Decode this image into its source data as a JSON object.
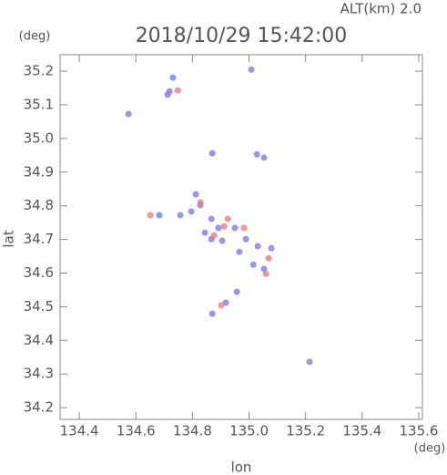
{
  "chart_data": {
    "type": "scatter",
    "annotation": "ALT(km) 2.0",
    "title": "2018/10/29 15:42:00",
    "y_unit": "(deg)",
    "x_unit": "(deg)",
    "ylabel": "lat",
    "xlabel": "lon",
    "xlim": [
      134.332,
      135.613
    ],
    "ylim": [
      34.165,
      35.249
    ],
    "xticks": [
      134.4,
      134.6,
      134.8,
      {
        "value": 135,
        "label": "135.0"
      },
      135.2,
      135.4,
      135.6
    ],
    "yticks": [
      34.2,
      34.3,
      34.4,
      34.5,
      34.6,
      34.7,
      34.8,
      34.9,
      {
        "value": 35,
        "label": "35.0"
      },
      35.1,
      35.2
    ],
    "series": [
      {
        "color": "#7b7bf0",
        "x": [
          134.574,
          134.719,
          134.731,
          134.712,
          135.008,
          134.87,
          135.028,
          135.053,
          134.812,
          134.828,
          134.683,
          134.757,
          134.867,
          134.892,
          134.867,
          134.95,
          134.989,
          135.031,
          135.079,
          135.015,
          135.053,
          134.966,
          134.905,
          134.957,
          134.918,
          134.87,
          135.214,
          134.796,
          134.844
        ],
        "y": [
          35.073,
          35.14,
          35.181,
          35.13,
          35.205,
          34.956,
          34.953,
          34.943,
          34.834,
          34.802,
          34.772,
          34.772,
          34.761,
          34.734,
          34.701,
          34.734,
          34.701,
          34.68,
          34.674,
          34.625,
          34.612,
          34.663,
          34.696,
          34.544,
          34.512,
          34.479,
          34.336,
          34.783,
          34.72
        ]
      },
      {
        "color": "#f07b7b",
        "x": [
          134.651,
          134.748,
          134.912,
          134.982,
          135.069,
          134.902,
          134.925,
          134.828,
          134.876,
          135.06
        ],
        "y": [
          34.772,
          35.143,
          34.739,
          34.734,
          34.644,
          34.504,
          34.761,
          34.81,
          34.712,
          34.598
        ]
      }
    ]
  }
}
